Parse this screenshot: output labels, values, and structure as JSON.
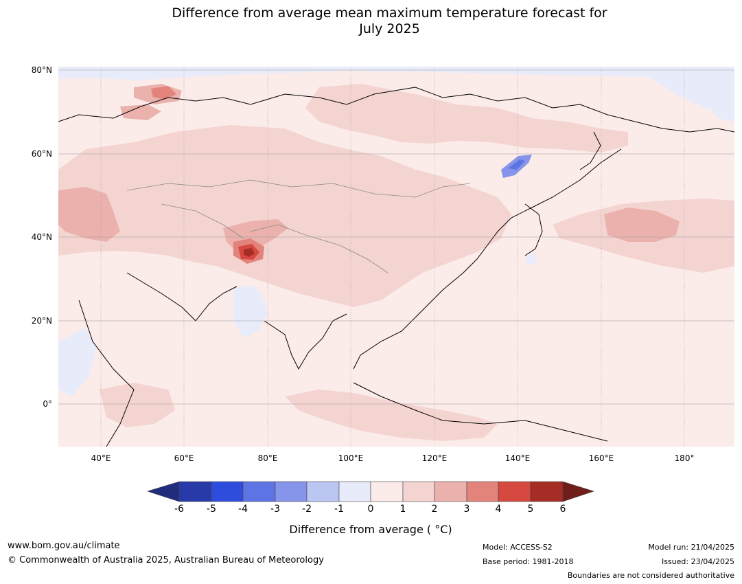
{
  "title": {
    "line1": "Difference from average mean maximum temperature forecast for",
    "line2": "July 2025"
  },
  "map": {
    "lat_labels": [
      "80°N",
      "60°N",
      "40°N",
      "20°N",
      "0°"
    ],
    "lon_labels": [
      "40°E",
      "60°E",
      "80°E",
      "100°E",
      "120°E",
      "140°E",
      "160°E",
      "180°"
    ],
    "extent": {
      "lon": [
        30,
        192
      ],
      "lat": [
        -10,
        81
      ]
    },
    "colors": {
      "-1_to_0": "#e8ecfa",
      "0_to_1": "#fbebe9",
      "1_to_2": "#f4d4d1",
      "2_to_3": "#ebb1ac",
      "3_to_4": "#e2837c",
      "4_to_5": "#d54940",
      "5_to_6": "#a52d25",
      "coast": "#000000",
      "borders": "#888888"
    }
  },
  "colorbar": {
    "ticks": [
      "-6",
      "-5",
      "-4",
      "-3",
      "-2",
      "-1",
      "0",
      "1",
      "2",
      "3",
      "4",
      "5",
      "6"
    ],
    "colors": [
      "#1f2d7c",
      "#283aa8",
      "#2f4ddc",
      "#5f74e4",
      "#8694ea",
      "#bcc6f2",
      "#e8ecfa",
      "#fbebe9",
      "#f4d4d1",
      "#ebb1ac",
      "#e2837c",
      "#d54940",
      "#a52d25",
      "#6f1e19"
    ],
    "label": "Difference from average ( °C)"
  },
  "footer": {
    "url": "www.bom.gov.au/climate",
    "copyright": "© Commonwealth of Australia 2025, Australian Bureau of Meteorology",
    "model": "Model: ACCESS-S2",
    "base_period": "Base period: 1981-2018",
    "model_run": "Model run: 21/04/2025",
    "issued": "Issued: 23/04/2025",
    "disclaimer": "Boundaries are not considered authoritative"
  }
}
